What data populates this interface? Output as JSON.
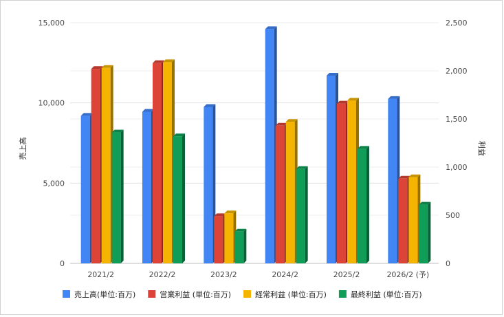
{
  "chart_data": {
    "type": "bar",
    "categories": [
      "2021/2",
      "2022/2",
      "2023/2",
      "2024/2",
      "2025/2",
      "2026/2 (予)"
    ],
    "y_left_label": "売上高",
    "y_right_label": "利益",
    "y_left_ticks": [
      "0",
      "5,000",
      "10,000",
      "15,000"
    ],
    "y_right_ticks": [
      "0",
      "500",
      "1,000",
      "1,500",
      "2,000",
      "2,500"
    ],
    "ylim_left": [
      0,
      15000
    ],
    "ylim_right": [
      0,
      2500
    ],
    "grid": true,
    "legend_position": "bottom",
    "series": [
      {
        "name": "売上高(単位:百万)",
        "axis": "left",
        "color": "#4285f4",
        "values": [
          9200,
          9450,
          9750,
          14600,
          11700,
          10250
        ]
      },
      {
        "name": "営業利益 (単位:百万)",
        "axis": "right",
        "color": "#db4437",
        "values": [
          2020,
          2080,
          490,
          1430,
          1660,
          880
        ]
      },
      {
        "name": "経常利益 (単位:百万)",
        "axis": "right",
        "color": "#f4b400",
        "values": [
          2030,
          2090,
          520,
          1470,
          1690,
          895
        ]
      },
      {
        "name": "最終利益 (単位:百万)",
        "axis": "right",
        "color": "#0f9d58",
        "values": [
          1360,
          1320,
          330,
          980,
          1190,
          610
        ]
      }
    ]
  }
}
